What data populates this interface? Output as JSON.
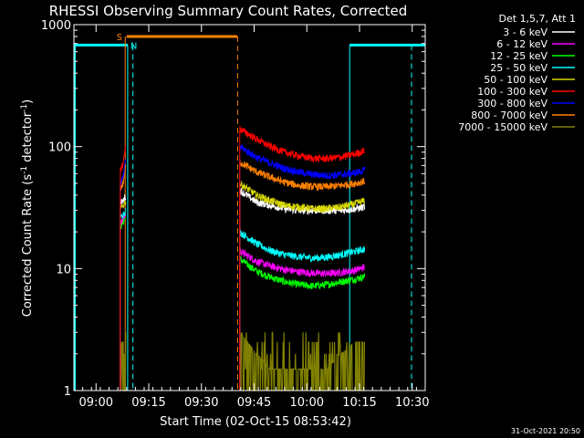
{
  "chart_data": {
    "type": "line",
    "title": "RHESSI Observing Summary Count Rates, Corrected",
    "xlabel": "Start Time (02-Oct-15 08:53:42)",
    "ylabel_main": "Corrected Count Rate (s",
    "ylabel_sup1": "-1",
    "ylabel_mid": " detector",
    "ylabel_sup2": "-1",
    "ylabel_end": ")",
    "yscale": "log",
    "ylim": [
      1,
      1000
    ],
    "xlim_minutes": [
      0,
      100
    ],
    "x_unit": "minutes after 08:53:42",
    "x_ticks": [
      {
        "label": "09:00",
        "t": 6.3
      },
      {
        "label": "09:15",
        "t": 21.3
      },
      {
        "label": "09:30",
        "t": 36.3
      },
      {
        "label": "09:45",
        "t": 51.3
      },
      {
        "label": "10:00",
        "t": 66.3
      },
      {
        "label": "10:15",
        "t": 81.3
      },
      {
        "label": "10:30",
        "t": 96.3
      }
    ],
    "y_ticks": [
      {
        "label": "1",
        "v": 1
      },
      {
        "label": "10",
        "v": 10
      },
      {
        "label": "100",
        "v": 100
      },
      {
        "label": "1000",
        "v": 1000
      }
    ],
    "legend_header": "Det 1,5,7, Att 1",
    "legend_position": "top-right-outside",
    "series": [
      {
        "name": "3 - 6 keV",
        "color": "#ffffff",
        "seg1": [
          [
            13.2,
            34
          ],
          [
            14.0,
            36
          ],
          [
            14.8,
            40
          ]
        ],
        "seg2": [
          [
            47.2,
            44
          ],
          [
            52,
            35
          ],
          [
            56,
            33
          ],
          [
            60,
            31
          ],
          [
            64,
            30
          ],
          [
            68,
            30
          ],
          [
            72,
            30
          ],
          [
            76,
            30
          ],
          [
            80,
            31
          ],
          [
            82.8,
            32
          ]
        ]
      },
      {
        "name": "6 - 12 keV",
        "color": "#ff00ff",
        "seg1": [
          [
            13.2,
            24
          ],
          [
            14.0,
            26
          ],
          [
            14.8,
            28
          ]
        ],
        "seg2": [
          [
            47.2,
            14
          ],
          [
            52,
            11.5
          ],
          [
            56,
            10.5
          ],
          [
            60,
            9.8
          ],
          [
            64,
            9.4
          ],
          [
            68,
            9.2
          ],
          [
            72,
            9.1
          ],
          [
            76,
            9.3
          ],
          [
            80,
            9.7
          ],
          [
            82.8,
            10.3
          ]
        ]
      },
      {
        "name": "12 - 25 keV",
        "color": "#00ff00",
        "seg1": [
          [
            13.2,
            22
          ],
          [
            14.0,
            24
          ],
          [
            14.8,
            26
          ]
        ],
        "seg2": [
          [
            47.2,
            12
          ],
          [
            52,
            9.5
          ],
          [
            56,
            8.5
          ],
          [
            60,
            7.8
          ],
          [
            64,
            7.4
          ],
          [
            68,
            7.2
          ],
          [
            72,
            7.4
          ],
          [
            76,
            7.8
          ],
          [
            80,
            8.2
          ],
          [
            82.8,
            8.6
          ]
        ]
      },
      {
        "name": "25 - 50 keV",
        "color": "#00ffff",
        "seg1": [
          [
            13.2,
            26
          ],
          [
            14.0,
            28
          ],
          [
            14.8,
            30
          ]
        ],
        "seg2": [
          [
            47.2,
            20
          ],
          [
            52,
            16
          ],
          [
            56,
            14
          ],
          [
            60,
            13
          ],
          [
            64,
            12.5
          ],
          [
            68,
            12.2
          ],
          [
            72,
            12.4
          ],
          [
            76,
            13
          ],
          [
            80,
            13.8
          ],
          [
            82.8,
            14.5
          ]
        ]
      },
      {
        "name": "50 - 100 keV",
        "color": "#d9d900",
        "seg1": [
          [
            13.2,
            30
          ],
          [
            14.0,
            33
          ],
          [
            14.8,
            36
          ]
        ],
        "seg2": [
          [
            47.2,
            50
          ],
          [
            52,
            40
          ],
          [
            56,
            36
          ],
          [
            60,
            33
          ],
          [
            64,
            32
          ],
          [
            68,
            31
          ],
          [
            72,
            31
          ],
          [
            76,
            32
          ],
          [
            80,
            34
          ],
          [
            82.8,
            36
          ]
        ]
      },
      {
        "name": "100 - 300 keV",
        "color": "#ff0000",
        "seg1": [
          [
            13.2,
            65
          ],
          [
            14.0,
            72
          ],
          [
            14.8,
            110
          ]
        ],
        "seg2": [
          [
            47.2,
            140
          ],
          [
            52,
            115
          ],
          [
            56,
            100
          ],
          [
            60,
            90
          ],
          [
            64,
            84
          ],
          [
            68,
            80
          ],
          [
            72,
            80
          ],
          [
            76,
            82
          ],
          [
            80,
            87
          ],
          [
            82.8,
            93
          ]
        ]
      },
      {
        "name": "300 - 800 keV",
        "color": "#0000ff",
        "seg1": [
          [
            13.2,
            50
          ],
          [
            14.0,
            55
          ],
          [
            14.8,
            80
          ]
        ],
        "seg2": [
          [
            47.2,
            100
          ],
          [
            52,
            82
          ],
          [
            56,
            73
          ],
          [
            60,
            66
          ],
          [
            64,
            62
          ],
          [
            68,
            59
          ],
          [
            72,
            58
          ],
          [
            76,
            59
          ],
          [
            80,
            61
          ],
          [
            82.8,
            64
          ]
        ]
      },
      {
        "name": "800 - 7000 keV",
        "color": "#ff8000",
        "seg1": [
          [
            13.2,
            45
          ],
          [
            14.0,
            50
          ],
          [
            14.8,
            70
          ]
        ],
        "seg2": [
          [
            47.2,
            75
          ],
          [
            52,
            62
          ],
          [
            56,
            56
          ],
          [
            60,
            51
          ],
          [
            64,
            48
          ],
          [
            68,
            47
          ],
          [
            72,
            47
          ],
          [
            76,
            48
          ],
          [
            80,
            50
          ],
          [
            82.8,
            52
          ]
        ]
      },
      {
        "name": "7000 - 15000 keV",
        "color": "#808000",
        "seg1": [
          [
            13.2,
            2.0
          ],
          [
            14.0,
            2.0
          ],
          [
            14.8,
            2.0
          ]
        ],
        "seg2": [
          [
            47.2,
            3.0
          ],
          [
            52,
            2.0
          ],
          [
            56,
            1.5
          ],
          [
            60,
            1.5
          ],
          [
            64,
            1.5
          ],
          [
            68,
            1.5
          ],
          [
            72,
            1.5
          ],
          [
            76,
            2.0
          ],
          [
            80,
            2.5
          ],
          [
            82.8,
            2.5
          ]
        ]
      }
    ],
    "annotations": {
      "flag_s_label": "S",
      "flag_n_label": "N",
      "saa_bar": [
        15.0,
        46.5
      ],
      "night_bars": [
        [
          0,
          15.3
        ],
        [
          78.5,
          100
        ]
      ],
      "saa_lines": [
        14.6,
        46.6
      ],
      "night_lines": [
        15.3,
        78.5
      ],
      "night_dashed": [
        16.8,
        96.1
      ],
      "flag_value": 800,
      "night_value": 680
    },
    "timestamp": "31-Oct-2021 20:50"
  }
}
